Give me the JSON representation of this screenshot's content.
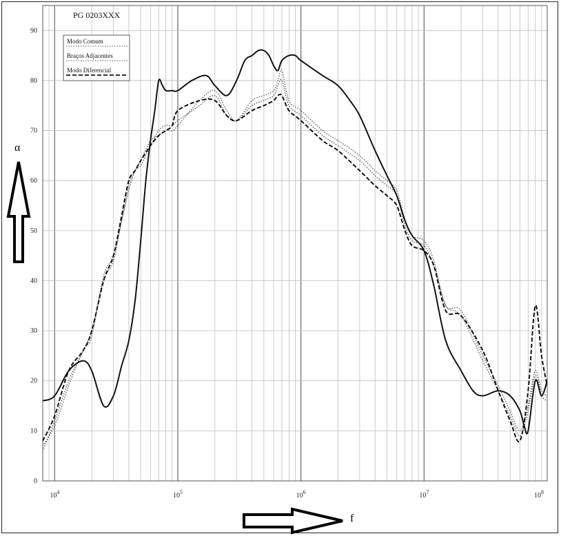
{
  "chart_data": {
    "type": "line",
    "title": "PG 0203XXX",
    "xlabel": "f",
    "ylabel": "α",
    "x_scale": "log",
    "xlim": [
      8000,
      100000000
    ],
    "ylim": [
      0,
      95
    ],
    "grid": true,
    "legend_position": "top-left",
    "y_ticks": [
      "0",
      "10",
      "20",
      "30",
      "40",
      "50",
      "60",
      "70",
      "80",
      "90"
    ],
    "x_ticks": [
      {
        "mantissa": "10",
        "exp": "4"
      },
      {
        "mantissa": "10",
        "exp": "5"
      },
      {
        "mantissa": "10",
        "exp": "6"
      },
      {
        "mantissa": "10",
        "exp": "7"
      },
      {
        "mantissa": "10",
        "exp": "8"
      }
    ],
    "series": [
      {
        "name": "Modo Comum",
        "style": "dotted",
        "x": [
          8000,
          10000,
          13000,
          17000,
          20000,
          25000,
          30000,
          35000,
          40000,
          45000,
          50000,
          60000,
          70000,
          80000,
          90000,
          100000,
          150000,
          200000,
          250000,
          300000,
          400000,
          500000,
          600000,
          650000,
          700000,
          800000,
          1000000,
          1500000,
          2000000,
          3000000,
          4000000,
          5000000,
          6000000,
          7000000,
          8000000,
          10000000,
          12000000,
          15000000,
          20000000,
          30000000,
          40000000,
          50000000,
          60000000,
          70000000,
          80000000,
          90000000,
          100000000
        ],
        "y": [
          6,
          12,
          20,
          26,
          30,
          40,
          44,
          52,
          59,
          62,
          64,
          68,
          69,
          70,
          70,
          71,
          76,
          78,
          74,
          72,
          76,
          77,
          78,
          80,
          82,
          76,
          74,
          70,
          68,
          65,
          62,
          60,
          58,
          52,
          49,
          48,
          44,
          35,
          34,
          25,
          19,
          14,
          10,
          15,
          22,
          18,
          17
        ]
      },
      {
        "name": "Braços Adjacentes",
        "style": "dotted",
        "x": [
          8000,
          10000,
          13000,
          17000,
          20000,
          25000,
          30000,
          35000,
          40000,
          45000,
          50000,
          60000,
          70000,
          80000,
          90000,
          100000,
          150000,
          200000,
          250000,
          300000,
          400000,
          500000,
          600000,
          650000,
          700000,
          800000,
          1000000,
          1500000,
          2000000,
          3000000,
          4000000,
          5000000,
          6000000,
          7000000,
          8000000,
          10000000,
          12000000,
          15000000,
          20000000,
          30000000,
          40000000,
          50000000,
          60000000,
          70000000,
          80000000,
          90000000,
          100000000
        ],
        "y": [
          7,
          11,
          19,
          26,
          29,
          41,
          45,
          52,
          58,
          62,
          63,
          67,
          70,
          71,
          71,
          72,
          75,
          77,
          73,
          72,
          75,
          76,
          77,
          79,
          80,
          75,
          73,
          69,
          67,
          64,
          61,
          59,
          57,
          51,
          48,
          47,
          43,
          35,
          33,
          24,
          18,
          13,
          9,
          14,
          21,
          17,
          16
        ]
      },
      {
        "name": "Modo Diferencial",
        "style": "dashed",
        "x": [
          8000,
          10000,
          13000,
          17000,
          20000,
          25000,
          30000,
          35000,
          40000,
          45000,
          50000,
          60000,
          70000,
          80000,
          90000,
          100000,
          150000,
          200000,
          250000,
          300000,
          400000,
          500000,
          600000,
          650000,
          700000,
          800000,
          1000000,
          1500000,
          2000000,
          3000000,
          4000000,
          5000000,
          6000000,
          7000000,
          8000000,
          10000000,
          12000000,
          15000000,
          20000000,
          30000000,
          40000000,
          50000000,
          60000000,
          70000000,
          80000000,
          90000000,
          100000000
        ],
        "y": [
          8,
          13,
          22,
          26,
          30,
          40,
          45,
          53,
          60,
          62,
          64,
          67,
          69,
          70,
          71,
          74,
          76,
          76,
          73,
          72,
          74,
          75,
          76,
          77,
          77,
          74,
          72,
          68,
          66,
          62,
          59,
          57,
          55,
          50,
          47,
          46,
          43,
          34,
          33,
          26,
          18,
          12,
          8,
          18,
          35,
          25,
          19
        ]
      },
      {
        "name": "",
        "style": "solid",
        "x": [
          8000,
          10000,
          13000,
          17000,
          20000,
          25000,
          30000,
          35000,
          40000,
          45000,
          50000,
          55000,
          60000,
          65000,
          70000,
          75000,
          80000,
          90000,
          100000,
          130000,
          170000,
          200000,
          250000,
          300000,
          350000,
          400000,
          450000,
          500000,
          550000,
          600000,
          650000,
          700000,
          800000,
          900000,
          1000000,
          1500000,
          2000000,
          2500000,
          3000000,
          4000000,
          5000000,
          6000000,
          7000000,
          8000000,
          10000000,
          12000000,
          15000000,
          20000000,
          25000000,
          30000000,
          40000000,
          50000000,
          60000000,
          65000000,
          70000000,
          80000000,
          90000000,
          100000000
        ],
        "y": [
          16,
          17,
          22,
          24,
          22,
          15,
          17,
          23,
          28,
          36,
          48,
          60,
          68,
          74,
          80,
          79,
          78,
          78,
          78,
          80,
          81,
          79,
          77,
          80,
          84,
          85,
          86,
          86,
          85,
          83,
          82,
          84,
          85,
          85,
          84,
          81,
          79,
          76,
          73,
          66,
          61,
          57,
          52,
          49,
          46,
          39,
          28,
          22,
          18,
          17,
          18,
          17,
          14,
          11,
          10,
          20,
          17,
          20
        ]
      }
    ]
  }
}
